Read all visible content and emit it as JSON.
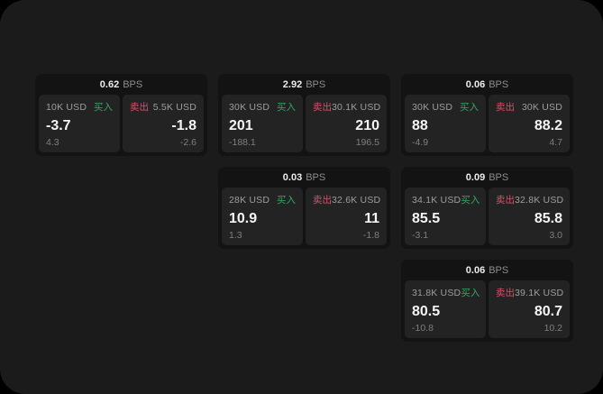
{
  "labels": {
    "buy": "买入",
    "sell": "卖出",
    "bps_suffix": "BPS"
  },
  "colors": {
    "page_bg": "#000000",
    "window_bg": "#1b1b1b",
    "card_bg": "#131313",
    "panel_bg": "#232323",
    "buy_green": "#36a566",
    "sell_red": "#d8506a"
  },
  "cards": [
    {
      "bps": "0.62",
      "buy": {
        "size": "10K USD",
        "price": "-3.7",
        "sub": "4.3"
      },
      "sell": {
        "size": "5.5K USD",
        "price": "-1.8",
        "sub": "-2.6"
      }
    },
    {
      "bps": "2.92",
      "buy": {
        "size": "30K USD",
        "price": "201",
        "sub": "-188.1"
      },
      "sell": {
        "size": "30.1K USD",
        "price": "210",
        "sub": "196.5"
      }
    },
    {
      "bps": "0.06",
      "buy": {
        "size": "30K USD",
        "price": "88",
        "sub": "-4.9"
      },
      "sell": {
        "size": "30K USD",
        "price": "88.2",
        "sub": "4.7"
      }
    },
    {
      "bps": "0.03",
      "buy": {
        "size": "28K USD",
        "price": "10.9",
        "sub": "1.3"
      },
      "sell": {
        "size": "32.6K USD",
        "price": "11",
        "sub": "-1.8"
      }
    },
    {
      "bps": "0.09",
      "buy": {
        "size": "34.1K USD",
        "price": "85.5",
        "sub": "-3.1"
      },
      "sell": {
        "size": "32.8K USD",
        "price": "85.8",
        "sub": "3.0"
      }
    },
    {
      "bps": "0.06",
      "buy": {
        "size": "31.8K USD",
        "price": "80.5",
        "sub": "-10.8"
      },
      "sell": {
        "size": "39.1K USD",
        "price": "80.7",
        "sub": "10.2"
      }
    }
  ]
}
